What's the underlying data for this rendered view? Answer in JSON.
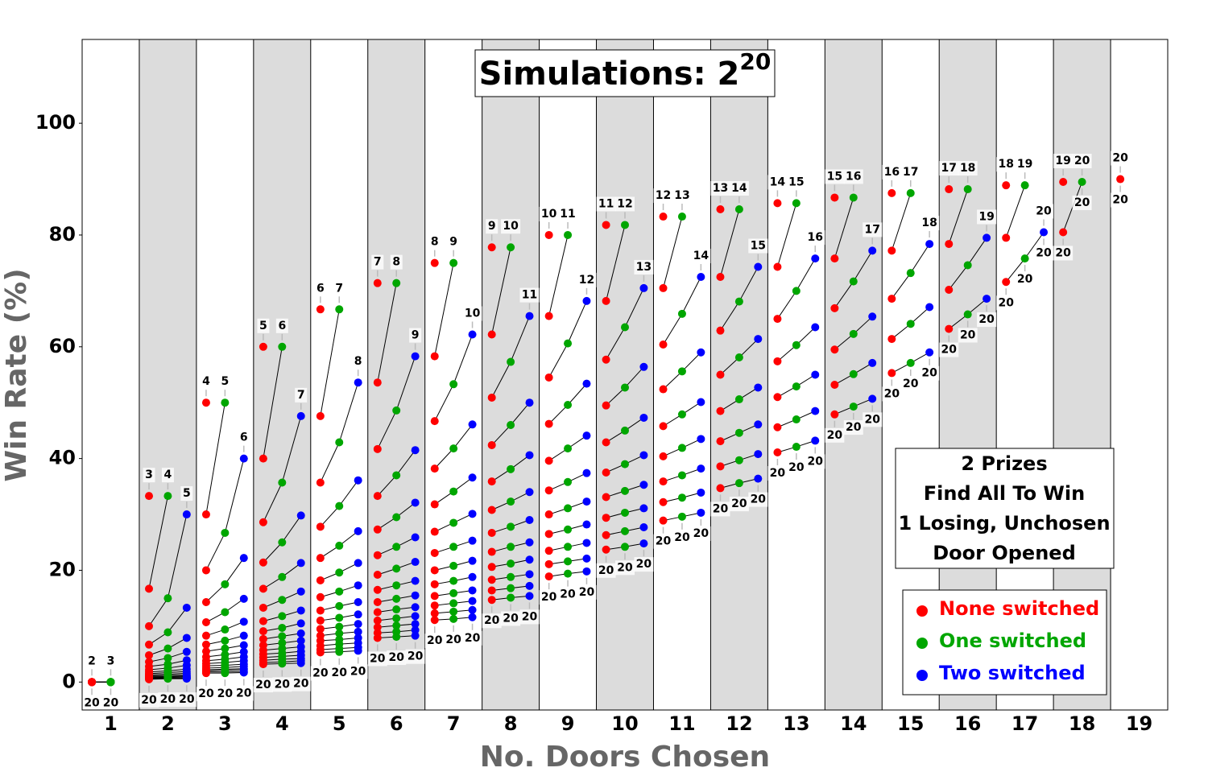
{
  "chart_data": {
    "type": "scatter",
    "title": "Simulations: 2",
    "title_exponent": "20",
    "x_label": "No. Doors Chosen",
    "y_label": "Win Rate (%)",
    "categories": [
      "1",
      "2",
      "3",
      "4",
      "5",
      "6",
      "7",
      "8",
      "9",
      "10",
      "11",
      "12",
      "13",
      "14",
      "15",
      "16",
      "17",
      "18",
      "19"
    ],
    "ylim": [
      -5,
      115
    ],
    "yticks": [
      0,
      20,
      40,
      60,
      80,
      100
    ],
    "grid": false,
    "shade_alternate": true,
    "annotation": [
      "2 Prizes",
      "Find All To Win",
      "1 Losing, Unchosen",
      "Door Opened"
    ],
    "legend_position": "lower right",
    "series": [
      {
        "name": "None switched",
        "color": "#ff0000",
        "values": [
          [
            0,
            0,
            0,
            0,
            0,
            0,
            0,
            0,
            0,
            0,
            0,
            0,
            0,
            0,
            0,
            0,
            0,
            0,
            0
          ],
          [
            33.3,
            16.7,
            10,
            6.7,
            4.8,
            3.6,
            2.8,
            2.2,
            1.8,
            1.5,
            1.3,
            1.1,
            1.0,
            0.8,
            0.7,
            0.7,
            0.6,
            0.5
          ],
          [
            50,
            30,
            20,
            14.3,
            10.7,
            8.3,
            6.7,
            5.5,
            4.5,
            3.8,
            3.3,
            2.9,
            2.5,
            2.2,
            2.0,
            1.8,
            1.6
          ],
          [
            60,
            40,
            28.6,
            21.4,
            16.7,
            13.3,
            10.9,
            9.1,
            7.7,
            6.6,
            5.7,
            5.0,
            4.4,
            3.9,
            3.5,
            3.2
          ],
          [
            66.7,
            47.6,
            35.7,
            27.8,
            22.2,
            18.2,
            15.2,
            12.8,
            11.0,
            9.5,
            8.3,
            7.4,
            6.5,
            5.8,
            5.3
          ],
          [
            71.4,
            53.6,
            41.7,
            33.3,
            27.3,
            22.7,
            19.2,
            16.5,
            14.3,
            12.5,
            11.0,
            9.8,
            8.8,
            7.9
          ],
          [
            75,
            58.3,
            46.7,
            38.2,
            31.8,
            26.9,
            23.1,
            20,
            17.5,
            15.4,
            13.7,
            12.3,
            11.1
          ],
          [
            77.8,
            62.2,
            50.9,
            42.4,
            35.9,
            30.8,
            26.7,
            23.3,
            20.6,
            18.3,
            16.4,
            14.7
          ],
          [
            80,
            65.5,
            54.5,
            46.2,
            39.6,
            34.3,
            30,
            26.5,
            23.5,
            21.1,
            18.9
          ],
          [
            81.8,
            68.2,
            57.7,
            49.5,
            42.9,
            37.5,
            33.1,
            29.4,
            26.3,
            23.7
          ],
          [
            83.3,
            70.5,
            60.4,
            52.4,
            45.8,
            40.4,
            35.9,
            32.2,
            28.9
          ],
          [
            84.6,
            72.5,
            62.9,
            55,
            48.5,
            43.1,
            38.6,
            34.7
          ],
          [
            85.7,
            74.3,
            65,
            57.4,
            51.0,
            45.6,
            41.1
          ],
          [
            86.7,
            75.8,
            66.9,
            59.5,
            53.2,
            47.9
          ],
          [
            87.5,
            77.2,
            68.6,
            61.4,
            55.3
          ],
          [
            88.2,
            78.4,
            70.2,
            63.2
          ],
          [
            88.9,
            79.5,
            71.6
          ],
          [
            89.5,
            80.5
          ],
          [
            90
          ]
        ],
        "end_labels": [
          [
            2,
            20
          ],
          [
            3,
            20
          ],
          [
            4,
            20
          ],
          [
            5,
            20
          ],
          [
            6,
            20
          ],
          [
            7,
            20
          ],
          [
            8,
            20
          ],
          [
            9,
            20
          ],
          [
            10,
            20
          ],
          [
            11,
            20
          ],
          [
            12,
            20
          ],
          [
            13,
            20
          ],
          [
            14,
            20
          ],
          [
            15,
            20
          ],
          [
            16,
            20
          ],
          [
            17,
            20
          ],
          [
            18,
            20
          ],
          [
            19,
            20
          ],
          [
            20,
            20
          ]
        ]
      },
      {
        "name": "One switched",
        "color": "#00a600",
        "values": [
          [
            0,
            0,
            0,
            0,
            0,
            0,
            0,
            0,
            0,
            0,
            0,
            0,
            0,
            0,
            0,
            0,
            0,
            0
          ],
          [
            33.3,
            15,
            8.9,
            6.0,
            4.3,
            3.2,
            2.5,
            2.0,
            1.7,
            1.4,
            1.2,
            1.0,
            0.9,
            0.8,
            0.7,
            0.6,
            0.6
          ],
          [
            50,
            26.7,
            17.5,
            12.5,
            9.4,
            7.4,
            6.0,
            4.9,
            4.1,
            3.5,
            3.0,
            2.6,
            2.3,
            2.1,
            1.8,
            1.6
          ],
          [
            60,
            35.7,
            25,
            18.8,
            14.7,
            11.8,
            9.7,
            8.2,
            7.0,
            6.0,
            5.2,
            4.6,
            4.1,
            3.6,
            3.3
          ],
          [
            66.7,
            42.9,
            31.5,
            24.4,
            19.6,
            16.2,
            13.6,
            11.5,
            9.9,
            8.7,
            7.6,
            6.8,
            6.0,
            5.4
          ],
          [
            71.4,
            48.6,
            37.0,
            29.5,
            24.2,
            20.3,
            17.3,
            14.9,
            13.0,
            11.4,
            10.1,
            9.0,
            8.1
          ],
          [
            75,
            53.3,
            41.8,
            34.1,
            28.5,
            24.2,
            20.8,
            18.1,
            15.9,
            14.1,
            12.6,
            11.3
          ],
          [
            77.8,
            57.3,
            46.0,
            38.1,
            32.3,
            27.8,
            24.2,
            21.2,
            18.8,
            16.8,
            15.1
          ],
          [
            80,
            60.6,
            49.6,
            41.8,
            35.8,
            31.1,
            27.3,
            24.2,
            21.6,
            19.4
          ],
          [
            81.8,
            63.5,
            52.7,
            45,
            39.0,
            34.2,
            30.3,
            27.0,
            24.2
          ],
          [
            83.3,
            65.9,
            55.6,
            47.9,
            41.9,
            37.0,
            33.0,
            29.6
          ],
          [
            84.6,
            68.1,
            58.1,
            50.6,
            44.6,
            39.7,
            35.6
          ],
          [
            85.7,
            70,
            60.3,
            52.9,
            47.0,
            42.1
          ],
          [
            86.7,
            71.7,
            62.3,
            55.1,
            49.3
          ],
          [
            87.5,
            73.2,
            64.1,
            57.1
          ],
          [
            88.2,
            74.6,
            65.8
          ],
          [
            88.9,
            75.8
          ],
          [
            89.5
          ],
          []
        ],
        "end_labels": [
          [
            3,
            20
          ],
          [
            4,
            20
          ],
          [
            5,
            20
          ],
          [
            6,
            20
          ],
          [
            7,
            20
          ],
          [
            8,
            20
          ],
          [
            9,
            20
          ],
          [
            10,
            20
          ],
          [
            11,
            20
          ],
          [
            12,
            20
          ],
          [
            13,
            20
          ],
          [
            14,
            20
          ],
          [
            15,
            20
          ],
          [
            16,
            20
          ],
          [
            17,
            20
          ],
          [
            18,
            20
          ],
          [
            19,
            20
          ],
          [
            20,
            20
          ],
          null
        ]
      },
      {
        "name": "Two switched",
        "color": "#0000ff",
        "values": [
          [],
          [
            30,
            13.3,
            7.9,
            5.4,
            3.9,
            3.0,
            2.3,
            1.9,
            1.6,
            1.3,
            1.1,
            1.0,
            0.8,
            0.7,
            0.7,
            0.6
          ],
          [
            40,
            22.2,
            14.9,
            10.8,
            8.3,
            6.6,
            5.4,
            4.5,
            3.8,
            3.2,
            2.8,
            2.4,
            2.2,
            1.9,
            1.7
          ],
          [
            47.6,
            29.8,
            21.3,
            16.2,
            12.8,
            10.5,
            8.7,
            7.4,
            6.3,
            5.5,
            4.8,
            4.2,
            3.8,
            3.4
          ],
          [
            53.6,
            36.1,
            27.0,
            21.3,
            17.3,
            14.3,
            12.1,
            10.4,
            9.0,
            7.9,
            7.0,
            6.2,
            5.6
          ],
          [
            58.3,
            41.5,
            32.1,
            25.9,
            21.5,
            18.1,
            15.5,
            13.4,
            11.8,
            10.4,
            9.3,
            8.3
          ],
          [
            62.2,
            46.1,
            36.6,
            30.1,
            25.3,
            21.7,
            18.8,
            16.4,
            14.5,
            12.9,
            11.6
          ],
          [
            65.5,
            50,
            40.6,
            34.0,
            29.0,
            25.0,
            21.9,
            19.3,
            17.2,
            15.4
          ],
          [
            68.2,
            53.4,
            44.1,
            37.4,
            32.3,
            28.2,
            24.9,
            22.1,
            19.8
          ],
          [
            70.5,
            56.4,
            47.3,
            40.6,
            35.3,
            31.1,
            27.7,
            24.8
          ],
          [
            72.5,
            59.0,
            50.1,
            43.5,
            38.2,
            33.9,
            30.3
          ],
          [
            74.3,
            61.4,
            52.7,
            46.1,
            40.8,
            36.4
          ],
          [
            75.8,
            63.5,
            55.0,
            48.5,
            43.2
          ],
          [
            77.2,
            65.4,
            57.1,
            50.7
          ],
          [
            78.4,
            67.1,
            59.0
          ],
          [
            79.5,
            68.6
          ],
          [
            80.5
          ],
          [],
          []
        ],
        "end_labels": [
          null,
          [
            5,
            20
          ],
          [
            6,
            20
          ],
          [
            7,
            20
          ],
          [
            8,
            20
          ],
          [
            9,
            20
          ],
          [
            10,
            20
          ],
          [
            11,
            20
          ],
          [
            12,
            20
          ],
          [
            13,
            20
          ],
          [
            14,
            20
          ],
          [
            15,
            20
          ],
          [
            16,
            20
          ],
          [
            17,
            20
          ],
          [
            18,
            20
          ],
          [
            19,
            20
          ],
          [
            20,
            20
          ],
          null,
          null
        ]
      }
    ]
  }
}
